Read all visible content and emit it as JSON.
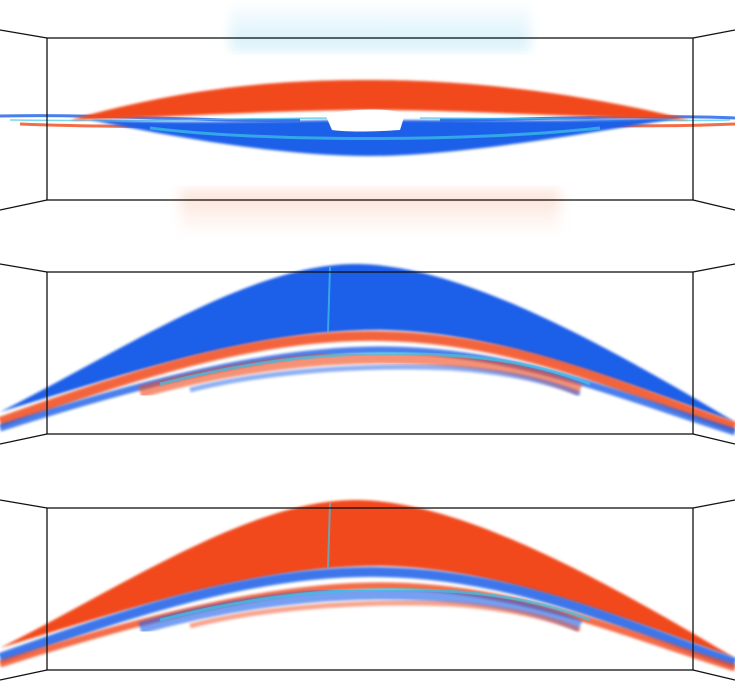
{
  "colors": {
    "red": "#f2481a",
    "blue": "#1a5ee8",
    "cyan": "#3fc6e8",
    "frame": "#111111",
    "background": "#ffffff"
  },
  "panels": [
    {
      "dominant_upper_color": "red",
      "dominant_lower_color": "blue",
      "shape": "flat-lens"
    },
    {
      "dominant_upper_color": "blue",
      "dominant_lower_color": "red",
      "shape": "arch"
    },
    {
      "dominant_upper_color": "red",
      "dominant_lower_color": "blue",
      "shape": "arch"
    }
  ]
}
